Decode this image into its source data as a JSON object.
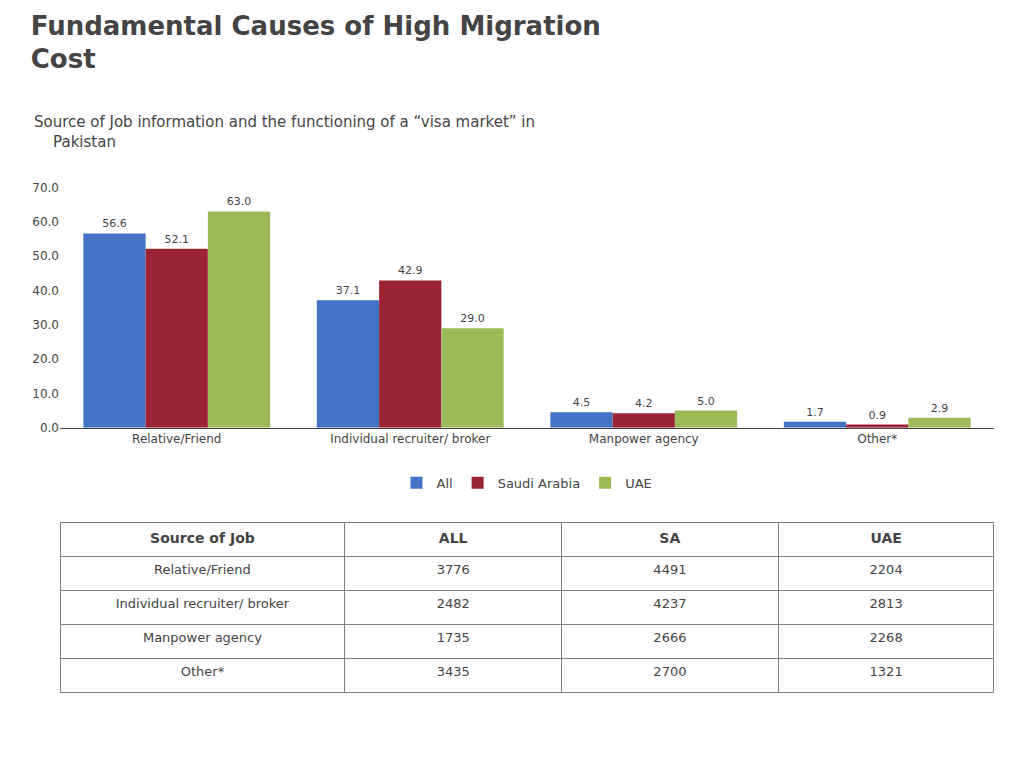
{
  "chart_data": [
    {
      "type": "bar",
      "title": "Fundamental Causes of High Migration\nCost",
      "subtitle": "Source of Job information and the functioning of a “visa market” in\n    Pakistan",
      "categories": [
        "Relative/Friend",
        "Individual recruiter/ broker",
        "Manpower agency",
        "Other*"
      ],
      "series": [
        {
          "name": "All",
          "color": "#4472C4",
          "values": [
            56.6,
            37.1,
            4.5,
            1.7
          ],
          "value_labels": [
            "56.6",
            "37.1",
            "4.5",
            "1.7"
          ]
        },
        {
          "name": "Saudi Arabia",
          "color": "#9B2335",
          "values": [
            52.1,
            42.9,
            4.2,
            0.9
          ],
          "value_labels": [
            "52.1",
            "42.9",
            "4.2",
            "0.9"
          ]
        },
        {
          "name": "UAE",
          "color": "#9BBB59",
          "values": [
            63.0,
            29.0,
            5.0,
            2.9
          ],
          "value_labels": [
            "63.0",
            "29.0",
            "5.0",
            "2.9"
          ]
        }
      ],
      "ylim": [
        0,
        70
      ],
      "yticks": [
        {
          "value": 0,
          "label": "0.0"
        },
        {
          "value": 10,
          "label": "10.0"
        },
        {
          "value": 20,
          "label": "20.0"
        },
        {
          "value": 30,
          "label": "30.0"
        },
        {
          "value": 40,
          "label": "40.0"
        },
        {
          "value": 50,
          "label": "50.0"
        },
        {
          "value": 60,
          "label": "60.0"
        },
        {
          "value": 70,
          "label": "70.0"
        }
      ],
      "grid": false,
      "legend": "bottom",
      "data_labels": true
    },
    {
      "type": "table",
      "columns": [
        "Source of Job",
        "ALL",
        "SA",
        "UAE"
      ],
      "rows": [
        [
          "Relative/Friend",
          "3776",
          "4491",
          "2204"
        ],
        [
          "Individual recruiter/ broker",
          "2482",
          "4237",
          "2813"
        ],
        [
          "Manpower agency",
          "1735",
          "2666",
          "2268"
        ],
        [
          "Other*",
          "3435",
          "2700",
          "1321"
        ]
      ]
    }
  ]
}
